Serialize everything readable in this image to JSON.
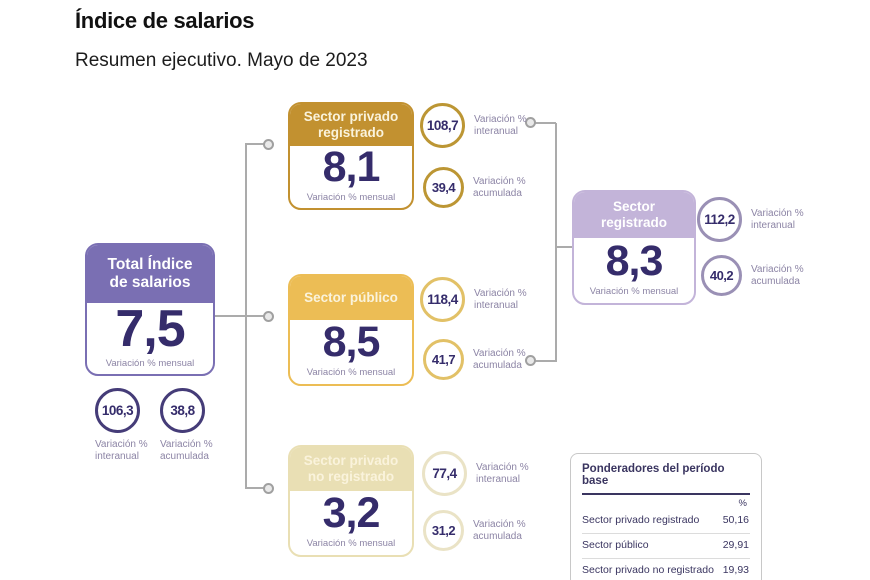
{
  "header": {
    "title": "Índice de salarios",
    "subtitle": "Resumen ejecutivo. Mayo de 2023"
  },
  "labels": {
    "monthly": "Variación % mensual",
    "interannual": "Variación % interanual",
    "accumulated": "Variación % acumulada"
  },
  "nodes": {
    "total": {
      "title": "Total Índice de salarios",
      "monthly": "7,5",
      "interannual": "106,3",
      "accumulated": "38,8",
      "color": "#7a6fb3",
      "circle_color": "#453c78"
    },
    "private_registered": {
      "title": "Sector privado registrado",
      "monthly": "8,1",
      "interannual": "108,7",
      "accumulated": "39,4",
      "color": "#c29130",
      "circle_color": "#bc9634"
    },
    "public": {
      "title": "Sector público",
      "monthly": "8,5",
      "interannual": "118,4",
      "accumulated": "41,7",
      "color": "#ecbd55",
      "circle_color": "#e2c167"
    },
    "private_unregistered": {
      "title": "Sector privado no registrado",
      "monthly": "3,2",
      "interannual": "77,4",
      "accumulated": "31,2",
      "color": "#e9dfb4",
      "circle_color": "#eae3c6"
    },
    "registered": {
      "title": "Sector registrado",
      "monthly": "8,3",
      "interannual": "112,2",
      "accumulated": "40,2",
      "color": "#c3b4d9",
      "circle_color": "#9a90b5"
    }
  },
  "weights_table": {
    "title": "Ponderadores del período base",
    "column_header": "%",
    "rows": [
      {
        "label": "Sector privado registrado",
        "value": "50,16"
      },
      {
        "label": "Sector público",
        "value": "29,91"
      },
      {
        "label": "Sector privado no registrado",
        "value": "19,93"
      }
    ]
  }
}
